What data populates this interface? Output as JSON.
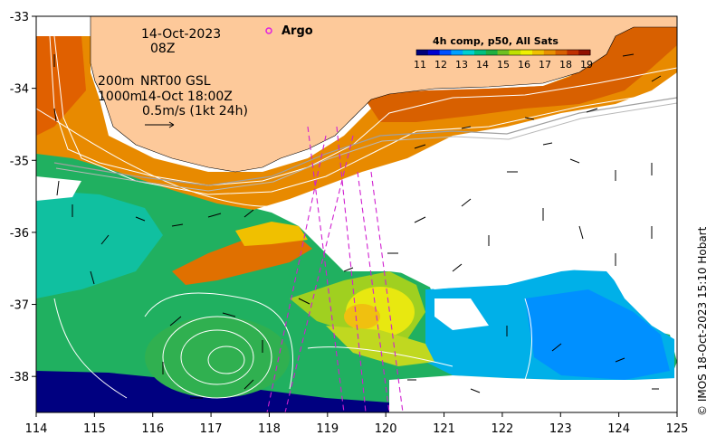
{
  "map": {
    "date_line": "14-Oct-2023",
    "time_line": "08Z",
    "depth_200": "200m",
    "depth_1000": "1000m",
    "current_source": "NRT00 GSL",
    "current_time": "14-Oct 18:00Z",
    "scale_label": "0.5m/s (1kt 24h)",
    "argo_label": "Argo",
    "credit": "© IMOS 18-Oct-2023 15:10 Hobart",
    "x_axis": {
      "ticks": [
        "114",
        "115",
        "116",
        "117",
        "118",
        "119",
        "120",
        "121",
        "122",
        "123",
        "124",
        "125"
      ],
      "range": [
        114,
        125
      ]
    },
    "y_axis": {
      "ticks": [
        "-33",
        "-34",
        "-35",
        "-36",
        "-37",
        "-38"
      ],
      "range": [
        -38.5,
        -33
      ]
    },
    "colorbar": {
      "title": "4h comp, p50, All Sats",
      "ticks": [
        "11",
        "12",
        "13",
        "14",
        "15",
        "16",
        "17",
        "18",
        "19"
      ],
      "colors": [
        "#00007a",
        "#0000d0",
        "#0050ff",
        "#00a0ff",
        "#00d0d0",
        "#00c080",
        "#20b040",
        "#70c020",
        "#c0e000",
        "#f0f000",
        "#f0c000",
        "#e89000",
        "#d86000",
        "#c03000",
        "#901000"
      ]
    },
    "colors": {
      "land": "#fdc99a",
      "argo": "#e020e0",
      "contour": "#ffffff",
      "track": "#d020d0"
    }
  }
}
